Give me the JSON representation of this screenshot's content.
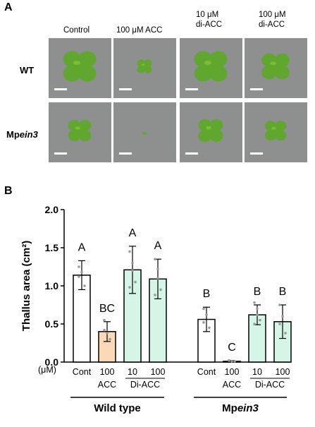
{
  "panel_a": {
    "letter": "A",
    "columns": [
      "Control",
      "100 μM ACC",
      "10 μM\ndi-ACC",
      "100 μM\ndi-ACC"
    ],
    "rows": [
      "WT",
      "Mpein3"
    ],
    "colors": {
      "background": "#8e8f8f",
      "plant": "#5fa82c",
      "scalebar": "#ffffff"
    }
  },
  "panel_b": {
    "letter": "B"
  },
  "chart_data": {
    "type": "bar",
    "ylabel": "Thallus area (cm²)",
    "unit_label": "(μM)",
    "ylim": [
      0,
      2.0
    ],
    "yticks": [
      "0.0",
      "0.5",
      "1.0",
      "1.5",
      "2.0"
    ],
    "categories": [
      {
        "dose": "Cont",
        "treatment": ""
      },
      {
        "dose": "100",
        "treatment": "ACC"
      },
      {
        "dose": "10",
        "treatment": "Di-ACC"
      },
      {
        "dose": "100",
        "treatment": "Di-ACC"
      }
    ],
    "groups": [
      {
        "name": "Wild type",
        "values": [
          1.14,
          0.4,
          1.21,
          1.09
        ],
        "errors": [
          0.19,
          0.13,
          0.31,
          0.26
        ],
        "letters": [
          "A",
          "BC",
          "A",
          "A"
        ]
      },
      {
        "name": "Mpein3",
        "values": [
          0.56,
          0.01,
          0.62,
          0.53
        ],
        "errors": [
          0.16,
          0.01,
          0.13,
          0.22
        ],
        "letters": [
          "B",
          "C",
          "B",
          "B"
        ]
      }
    ],
    "bar_colors": [
      "#ffffff",
      "#fad8b8",
      "#d5f5e6",
      "#d5f5e6"
    ],
    "points": [
      [
        [
          1.25,
          1.18,
          1.0,
          1.12
        ],
        [
          0.55,
          0.38,
          0.3,
          0.42
        ],
        [
          1.45,
          1.3,
          1.05,
          0.98,
          1.2
        ],
        [
          1.35,
          1.22,
          0.95,
          0.88,
          1.1
        ]
      ],
      [
        [
          0.7,
          0.62,
          0.45,
          0.52
        ],
        [
          0.02,
          0.01,
          0.01,
          0.02
        ],
        [
          0.78,
          0.7,
          0.55,
          0.5,
          0.62
        ],
        [
          0.75,
          0.6,
          0.38,
          0.5
        ]
      ]
    ],
    "di_acc_label": "Di-ACC"
  }
}
